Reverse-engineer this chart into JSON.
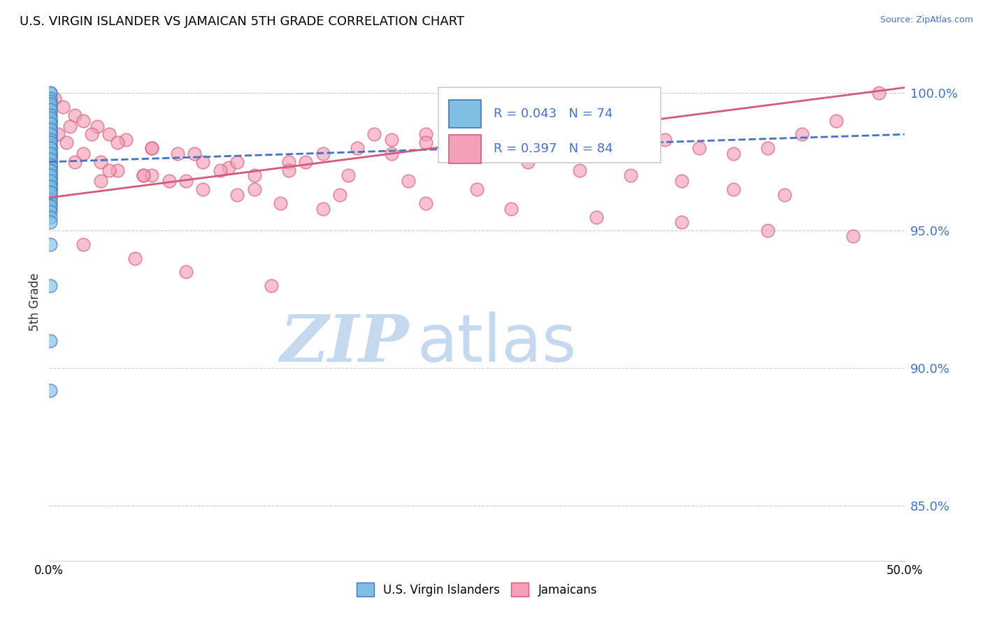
{
  "title": "U.S. VIRGIN ISLANDER VS JAMAICAN 5TH GRADE CORRELATION CHART",
  "source": "Source: ZipAtlas.com",
  "ylabel": "5th Grade",
  "xmin": 0.0,
  "xmax": 50.0,
  "ymin": 83.0,
  "ymax": 101.8,
  "yticks": [
    85.0,
    90.0,
    95.0,
    100.0
  ],
  "ytick_labels": [
    "85.0%",
    "90.0%",
    "95.0%",
    "100.0%"
  ],
  "blue_R": 0.043,
  "blue_N": 74,
  "pink_R": 0.397,
  "pink_N": 84,
  "blue_color": "#7fbfdf",
  "pink_color": "#f4a0b8",
  "blue_edge_color": "#4472c4",
  "pink_edge_color": "#d45a7a",
  "blue_line_color": "#4472c4",
  "pink_line_color": "#d45a7a",
  "legend_label_blue": "U.S. Virgin Islanders",
  "legend_label_pink": "Jamaicans",
  "watermark_zip": "ZIP",
  "watermark_atlas": "atlas",
  "watermark_color_zip": "#c5d8ee",
  "watermark_color_atlas": "#c5d8ee",
  "blue_scatter_x": [
    0.05,
    0.05,
    0.05,
    0.06,
    0.05,
    0.07,
    0.05,
    0.06,
    0.08,
    0.05,
    0.06,
    0.07,
    0.05,
    0.06,
    0.05,
    0.05,
    0.06,
    0.05,
    0.07,
    0.05,
    0.05,
    0.06,
    0.05,
    0.07,
    0.05,
    0.06,
    0.05,
    0.07,
    0.05,
    0.06,
    0.05,
    0.05,
    0.06,
    0.05,
    0.07,
    0.05,
    0.06,
    0.05,
    0.05,
    0.06,
    0.05,
    0.07,
    0.05,
    0.06,
    0.05,
    0.05,
    0.06,
    0.05,
    0.07,
    0.05,
    0.08,
    0.05,
    0.06,
    0.05,
    0.07,
    0.05,
    0.06,
    0.05,
    0.05,
    0.06,
    0.05,
    0.07,
    0.05,
    0.06,
    0.05,
    0.05,
    0.06,
    0.05,
    0.05,
    0.06,
    0.05,
    0.07,
    0.05,
    0.06
  ],
  "blue_scatter_y": [
    100.0,
    100.0,
    99.8,
    99.7,
    99.5,
    99.3,
    99.0,
    98.9,
    98.7,
    98.5,
    98.3,
    98.0,
    97.8,
    97.7,
    97.5,
    97.3,
    97.0,
    96.9,
    96.7,
    96.5,
    99.6,
    99.4,
    99.2,
    99.0,
    98.8,
    98.6,
    98.4,
    98.2,
    98.0,
    97.8,
    97.6,
    97.4,
    97.2,
    97.0,
    96.8,
    96.6,
    96.4,
    96.2,
    96.0,
    95.8,
    99.1,
    98.9,
    98.7,
    98.5,
    98.3,
    98.1,
    97.9,
    97.7,
    97.5,
    97.3,
    97.1,
    96.9,
    96.7,
    96.5,
    96.3,
    96.1,
    95.9,
    95.7,
    95.5,
    95.3,
    98.2,
    98.0,
    97.8,
    97.6,
    97.4,
    97.2,
    97.0,
    96.8,
    96.6,
    96.4,
    94.5,
    93.0,
    91.0,
    89.2
  ],
  "pink_scatter_x": [
    0.3,
    0.8,
    1.5,
    2.0,
    2.8,
    3.5,
    4.5,
    6.0,
    7.5,
    9.0,
    10.5,
    12.0,
    14.0,
    16.0,
    18.0,
    20.0,
    22.0,
    24.0,
    26.0,
    28.0,
    30.0,
    32.0,
    34.0,
    36.0,
    38.0,
    40.0,
    42.0,
    44.0,
    46.0,
    48.5,
    0.5,
    1.0,
    2.0,
    3.0,
    4.0,
    5.5,
    7.0,
    9.0,
    11.0,
    13.5,
    16.0,
    19.0,
    22.0,
    25.0,
    28.0,
    31.0,
    34.0,
    37.0,
    40.0,
    43.0,
    1.2,
    2.5,
    4.0,
    6.0,
    8.5,
    11.0,
    14.0,
    17.5,
    21.0,
    25.0,
    3.0,
    6.0,
    10.0,
    15.0,
    20.0,
    25.0,
    30.0,
    35.0,
    1.5,
    3.5,
    5.5,
    8.0,
    12.0,
    17.0,
    22.0,
    27.0,
    32.0,
    37.0,
    42.0,
    47.0,
    2.0,
    5.0,
    8.0,
    13.0
  ],
  "pink_scatter_y": [
    99.8,
    99.5,
    99.2,
    99.0,
    98.8,
    98.5,
    98.3,
    98.0,
    97.8,
    97.5,
    97.3,
    97.0,
    97.5,
    97.8,
    98.0,
    98.3,
    98.5,
    98.8,
    99.0,
    99.2,
    99.0,
    98.8,
    98.5,
    98.3,
    98.0,
    97.8,
    98.0,
    98.5,
    99.0,
    100.0,
    98.5,
    98.2,
    97.8,
    97.5,
    97.2,
    97.0,
    96.8,
    96.5,
    96.3,
    96.0,
    95.8,
    98.5,
    98.2,
    97.8,
    97.5,
    97.2,
    97.0,
    96.8,
    96.5,
    96.3,
    98.8,
    98.5,
    98.2,
    98.0,
    97.8,
    97.5,
    97.2,
    97.0,
    96.8,
    96.5,
    96.8,
    97.0,
    97.2,
    97.5,
    97.8,
    98.0,
    98.2,
    98.5,
    97.5,
    97.2,
    97.0,
    96.8,
    96.5,
    96.3,
    96.0,
    95.8,
    95.5,
    95.3,
    95.0,
    94.8,
    94.5,
    94.0,
    93.5,
    93.0
  ],
  "blue_trend_x0": 0.0,
  "blue_trend_x1": 50.0,
  "blue_trend_y0": 97.5,
  "blue_trend_y1": 98.5,
  "pink_trend_x0": 0.0,
  "pink_trend_x1": 50.0,
  "pink_trend_y0": 96.2,
  "pink_trend_y1": 100.2
}
